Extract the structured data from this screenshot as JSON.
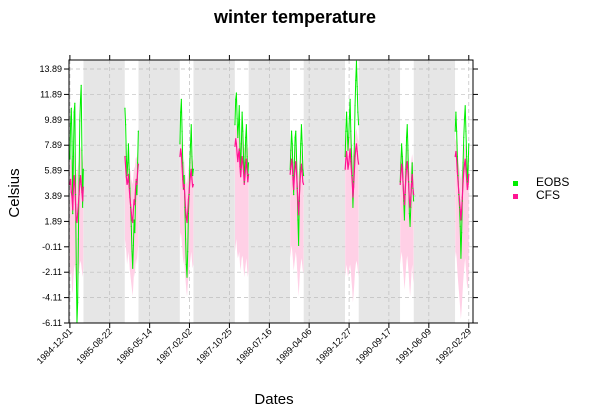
{
  "chart_data": {
    "type": "line",
    "title": "winter temperature",
    "xlabel": "Dates",
    "ylabel": "Celsius",
    "ylim": [
      -6.11,
      14.6
    ],
    "y_ticks": [
      "-6.11",
      "-4.11",
      "-2.11",
      "-0.11",
      "1.89",
      "3.89",
      "5.89",
      "7.89",
      "9.89",
      "11.89",
      "13.89"
    ],
    "x_ticks": [
      "1984-12-01",
      "1985-08-22",
      "1986-05-14",
      "1987-02-02",
      "1987-10-25",
      "1988-07-16",
      "1989-04-06",
      "1989-12-27",
      "1990-09-17",
      "1991-06-09",
      "1992-02-29"
    ],
    "xlim": [
      "1984-11-25",
      "1992-03-28"
    ],
    "grid": true,
    "legend_position": "right",
    "shaded_periods": [
      [
        "1985-03-01",
        "1985-11-30"
      ],
      [
        "1986-03-01",
        "1986-11-30"
      ],
      [
        "1987-03-01",
        "1987-11-30"
      ],
      [
        "1988-03-01",
        "1988-11-30"
      ],
      [
        "1989-03-01",
        "1989-11-30"
      ],
      [
        "1990-03-01",
        "1990-11-30"
      ],
      [
        "1991-03-01",
        "1991-11-30"
      ]
    ],
    "seasons": [
      {
        "start": "1984-12-01",
        "end": "1985-02-28",
        "EOBS": [
          6.8,
          9.6,
          10.8,
          8.2,
          2.5,
          7.0,
          10.5,
          11.2,
          4.0,
          -1.5,
          -6.1,
          -4.5,
          0.5,
          5.5,
          9.8,
          11.5,
          12.6,
          7.5,
          3.0,
          6.0
        ],
        "CFS": [
          4.8,
          5.2,
          4.2,
          3.8,
          2.8,
          4.5,
          5.5,
          4.8,
          3.2,
          2.0,
          1.8,
          2.5,
          3.2,
          4.0,
          5.0,
          5.5,
          4.8,
          4.2,
          3.5,
          4.6
        ],
        "CFS_range": [
          [
            -1.5,
            7.8
          ],
          [
            -2.5,
            7.2
          ],
          [
            -2.0,
            6.8
          ],
          [
            -3.5,
            6.5
          ],
          [
            -3.8,
            6.0
          ],
          [
            -2.5,
            6.8
          ],
          [
            -1.8,
            7.4
          ],
          [
            -1.5,
            7.0
          ],
          [
            -2.5,
            6.2
          ],
          [
            -3.2,
            5.5
          ],
          [
            -3.5,
            5.8
          ],
          [
            -3.0,
            6.0
          ],
          [
            -2.5,
            6.5
          ],
          [
            -2.0,
            7.0
          ],
          [
            -1.5,
            7.5
          ],
          [
            -1.2,
            7.8
          ],
          [
            -1.5,
            7.5
          ],
          [
            -2.0,
            7.0
          ],
          [
            -2.5,
            6.5
          ],
          [
            -1.8,
            7.2
          ]
        ]
      },
      {
        "start": "1985-12-01",
        "end": "1986-02-28",
        "EOBS": [
          10.8,
          9.5,
          7.0,
          5.5,
          6.5,
          8.0,
          6.0,
          4.5,
          3.0,
          1.5,
          -0.5,
          -1.8,
          0.0,
          2.0,
          1.0,
          3.5,
          5.0,
          4.0,
          6.5,
          9.0
        ],
        "CFS": [
          7.0,
          6.2,
          5.4,
          4.8,
          5.0,
          5.6,
          4.6,
          3.8,
          3.2,
          2.6,
          2.0,
          1.8,
          2.8,
          3.6,
          3.2,
          4.4,
          5.2,
          4.8,
          5.8,
          6.4
        ],
        "CFS_range": [
          [
            0.5,
            8.2
          ],
          [
            0.0,
            7.8
          ],
          [
            -0.5,
            7.0
          ],
          [
            -1.5,
            6.5
          ],
          [
            -1.0,
            6.8
          ],
          [
            -0.5,
            7.2
          ],
          [
            -1.2,
            6.5
          ],
          [
            -2.0,
            6.0
          ],
          [
            -2.5,
            5.8
          ],
          [
            -3.0,
            5.2
          ],
          [
            -3.5,
            5.0
          ],
          [
            -4.0,
            4.8
          ],
          [
            -3.0,
            5.5
          ],
          [
            -2.0,
            6.2
          ],
          [
            -2.5,
            6.0
          ],
          [
            -1.5,
            6.8
          ],
          [
            -1.0,
            7.0
          ],
          [
            -1.5,
            6.8
          ],
          [
            -0.5,
            7.5
          ],
          [
            0.0,
            8.0
          ]
        ]
      },
      {
        "start": "1986-12-01",
        "end": "1987-02-28",
        "EOBS": [
          8.0,
          10.5,
          11.5,
          9.0,
          6.5,
          4.5,
          5.5,
          3.0,
          0.5,
          -1.5,
          -2.5,
          -0.5,
          2.5,
          4.0,
          6.5,
          8.0,
          9.5,
          7.0,
          5.5,
          6.0
        ],
        "CFS": [
          7.0,
          7.6,
          7.2,
          6.2,
          5.2,
          4.4,
          4.8,
          3.8,
          2.8,
          2.2,
          1.8,
          2.6,
          3.6,
          4.2,
          5.0,
          5.6,
          6.0,
          5.2,
          4.6,
          4.8
        ],
        "CFS_range": [
          [
            0.5,
            8.4
          ],
          [
            1.0,
            8.6
          ],
          [
            0.8,
            8.2
          ],
          [
            0.0,
            7.8
          ],
          [
            -0.8,
            7.0
          ],
          [
            -1.5,
            6.5
          ],
          [
            -1.0,
            6.8
          ],
          [
            -2.0,
            6.0
          ],
          [
            -2.8,
            5.5
          ],
          [
            -3.5,
            5.0
          ],
          [
            -4.0,
            4.8
          ],
          [
            -3.2,
            5.4
          ],
          [
            -2.5,
            6.0
          ],
          [
            -2.0,
            6.4
          ],
          [
            -1.5,
            7.0
          ],
          [
            -1.0,
            7.4
          ],
          [
            -0.5,
            7.6
          ],
          [
            -1.2,
            7.0
          ],
          [
            -1.8,
            6.6
          ],
          [
            -1.5,
            6.8
          ]
        ]
      },
      {
        "start": "1987-12-01",
        "end": "1988-02-29",
        "EOBS": [
          9.5,
          11.5,
          12.0,
          10.0,
          8.5,
          9.5,
          11.0,
          7.5,
          6.0,
          8.0,
          10.5,
          9.0,
          7.0,
          5.0,
          6.5,
          8.5,
          9.5,
          7.0,
          5.5,
          6.5
        ],
        "CFS": [
          7.8,
          8.4,
          8.0,
          7.2,
          6.6,
          7.2,
          7.6,
          6.2,
          5.4,
          6.2,
          7.0,
          6.6,
          5.8,
          4.8,
          5.4,
          6.2,
          6.8,
          5.8,
          5.0,
          5.6
        ],
        "CFS_range": [
          [
            -0.5,
            9.0
          ],
          [
            0.0,
            9.4
          ],
          [
            0.5,
            9.6
          ],
          [
            -0.5,
            9.0
          ],
          [
            -1.0,
            8.6
          ],
          [
            -0.8,
            8.8
          ],
          [
            -0.5,
            9.2
          ],
          [
            -1.5,
            8.4
          ],
          [
            -2.0,
            8.0
          ],
          [
            -1.2,
            8.4
          ],
          [
            -0.8,
            8.8
          ],
          [
            -1.0,
            8.6
          ],
          [
            -1.8,
            8.2
          ],
          [
            -2.5,
            7.6
          ],
          [
            -2.0,
            7.8
          ],
          [
            -1.5,
            8.2
          ],
          [
            -1.0,
            8.6
          ],
          [
            -1.8,
            8.0
          ],
          [
            -2.5,
            7.6
          ],
          [
            -2.0,
            7.8
          ]
        ]
      },
      {
        "start": "1988-12-01",
        "end": "1989-02-28",
        "EOBS": [
          6.0,
          7.5,
          9.0,
          8.0,
          5.5,
          4.0,
          6.5,
          8.5,
          9.0,
          7.0,
          4.5,
          2.0,
          0.0,
          3.5,
          6.0,
          8.0,
          9.5,
          8.0,
          6.0,
          5.5
        ],
        "CFS": [
          5.6,
          6.2,
          6.8,
          6.4,
          5.2,
          4.4,
          5.4,
          6.2,
          6.6,
          5.8,
          4.6,
          3.4,
          2.4,
          3.8,
          5.0,
          5.8,
          6.4,
          5.8,
          5.0,
          4.8
        ],
        "CFS_range": [
          [
            -1.0,
            7.4
          ],
          [
            -0.5,
            7.8
          ],
          [
            0.0,
            8.0
          ],
          [
            -0.5,
            7.8
          ],
          [
            -1.2,
            7.0
          ],
          [
            -2.0,
            6.6
          ],
          [
            -1.5,
            7.0
          ],
          [
            -1.0,
            7.6
          ],
          [
            -0.5,
            7.8
          ],
          [
            -1.0,
            7.4
          ],
          [
            -2.0,
            6.8
          ],
          [
            -3.0,
            6.0
          ],
          [
            -4.0,
            5.4
          ],
          [
            -3.0,
            6.2
          ],
          [
            -2.0,
            6.8
          ],
          [
            -1.5,
            7.2
          ],
          [
            -1.0,
            7.6
          ],
          [
            -1.5,
            7.2
          ],
          [
            -2.0,
            6.8
          ],
          [
            -2.2,
            6.6
          ]
        ]
      },
      {
        "start": "1989-12-01",
        "end": "1990-02-28",
        "EOBS": [
          7.0,
          9.0,
          10.5,
          9.0,
          7.5,
          8.5,
          10.0,
          11.5,
          9.0,
          7.0,
          5.5,
          3.0,
          5.0,
          8.0,
          11.0,
          13.0,
          14.5,
          12.5,
          10.5,
          9.5
        ],
        "CFS": [
          6.0,
          6.8,
          7.4,
          6.8,
          6.0,
          6.4,
          7.0,
          7.6,
          6.6,
          5.8,
          5.0,
          3.8,
          4.6,
          5.8,
          7.0,
          7.6,
          8.0,
          7.4,
          6.8,
          6.4
        ],
        "CFS_range": [
          [
            -2.5,
            8.0
          ],
          [
            -2.0,
            8.4
          ],
          [
            -1.5,
            8.8
          ],
          [
            -2.0,
            8.4
          ],
          [
            -2.5,
            8.0
          ],
          [
            -2.2,
            8.2
          ],
          [
            -1.8,
            8.6
          ],
          [
            -1.5,
            9.0
          ],
          [
            -2.0,
            8.4
          ],
          [
            -2.8,
            8.0
          ],
          [
            -3.5,
            7.6
          ],
          [
            -4.5,
            7.0
          ],
          [
            -3.8,
            7.4
          ],
          [
            -3.0,
            8.0
          ],
          [
            -2.0,
            8.6
          ],
          [
            -1.5,
            9.0
          ],
          [
            -1.2,
            9.2
          ],
          [
            -1.5,
            8.8
          ],
          [
            -2.0,
            8.4
          ],
          [
            -2.5,
            8.2
          ]
        ]
      },
      {
        "start": "1990-12-01",
        "end": "1991-02-28",
        "EOBS": [
          5.0,
          6.5,
          8.0,
          7.0,
          5.0,
          3.5,
          2.0,
          4.0,
          6.0,
          8.5,
          9.5,
          7.5,
          5.0,
          2.5,
          1.5,
          3.0,
          5.0,
          6.5,
          4.5,
          3.5
        ],
        "CFS": [
          4.8,
          5.6,
          6.4,
          6.0,
          5.0,
          4.0,
          3.2,
          4.2,
          5.2,
          6.2,
          6.6,
          5.8,
          4.8,
          3.6,
          3.0,
          3.8,
          4.8,
          5.6,
          4.6,
          4.0
        ],
        "CFS_range": [
          [
            -1.5,
            7.0
          ],
          [
            -1.0,
            7.4
          ],
          [
            -0.5,
            7.8
          ],
          [
            -1.0,
            7.6
          ],
          [
            -1.8,
            7.0
          ],
          [
            -2.5,
            6.4
          ],
          [
            -3.5,
            5.8
          ],
          [
            -2.8,
            6.4
          ],
          [
            -2.0,
            7.0
          ],
          [
            -1.2,
            7.6
          ],
          [
            -0.8,
            7.8
          ],
          [
            -1.5,
            7.4
          ],
          [
            -2.2,
            6.8
          ],
          [
            -3.2,
            6.0
          ],
          [
            -4.0,
            5.6
          ],
          [
            -3.2,
            6.2
          ],
          [
            -2.2,
            6.8
          ],
          [
            -1.5,
            7.2
          ],
          [
            -2.5,
            6.6
          ],
          [
            -3.0,
            6.2
          ]
        ]
      },
      {
        "start": "1991-12-01",
        "end": "1992-02-29",
        "EOBS": [
          9.0,
          10.5,
          9.0,
          7.0,
          5.5,
          4.0,
          3.0,
          1.5,
          -1.0,
          1.0,
          3.5,
          6.5,
          8.5,
          10.0,
          11.0,
          9.0,
          7.0,
          5.0,
          6.0,
          8.0
        ],
        "CFS": [
          7.0,
          7.4,
          6.8,
          5.8,
          5.0,
          4.2,
          3.6,
          2.8,
          2.0,
          2.8,
          3.8,
          5.0,
          5.8,
          6.4,
          6.8,
          6.0,
          5.2,
          4.4,
          4.8,
          5.6
        ],
        "CFS_range": [
          [
            -1.0,
            8.2
          ],
          [
            -0.5,
            8.4
          ],
          [
            -1.0,
            8.0
          ],
          [
            -2.0,
            7.6
          ],
          [
            -2.8,
            7.0
          ],
          [
            -3.5,
            6.4
          ],
          [
            -4.2,
            6.0
          ],
          [
            -5.0,
            5.6
          ],
          [
            -5.8,
            5.2
          ],
          [
            -5.0,
            5.6
          ],
          [
            -4.0,
            6.2
          ],
          [
            -3.0,
            6.8
          ],
          [
            -2.2,
            7.4
          ],
          [
            -1.5,
            7.8
          ],
          [
            -1.0,
            8.0
          ],
          [
            -1.8,
            7.6
          ],
          [
            -2.8,
            7.0
          ],
          [
            -3.5,
            6.6
          ],
          [
            -3.0,
            6.8
          ],
          [
            -2.0,
            7.4
          ]
        ]
      }
    ],
    "series": [
      {
        "name": "EOBS",
        "color": "#00ee00"
      },
      {
        "name": "CFS",
        "color": "#ff1493",
        "range_color": "#ffd0e6"
      }
    ]
  }
}
